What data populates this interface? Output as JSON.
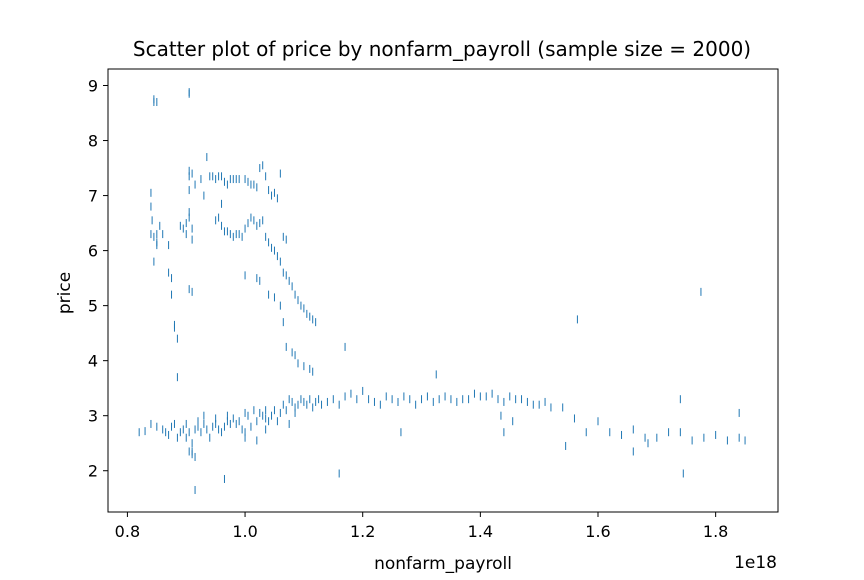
{
  "chart_data": {
    "type": "scatter",
    "title": "Scatter plot of price by nonfarm_payroll (sample size = 2000)",
    "xlabel": "nonfarm_payroll",
    "ylabel": "price",
    "x_offset_label": "1e18",
    "x_ticks": [
      0.8,
      1.0,
      1.2,
      1.4,
      1.6,
      1.8
    ],
    "x_tick_labels": [
      "0.8",
      "1.0",
      "1.2",
      "1.4",
      "1.6",
      "1.8"
    ],
    "y_ticks": [
      2,
      3,
      4,
      5,
      6,
      7,
      8,
      9
    ],
    "y_tick_labels": [
      "2",
      "3",
      "4",
      "5",
      "6",
      "7",
      "8",
      "9"
    ],
    "xlim": [
      0.767,
      1.906
    ],
    "ylim": [
      1.25,
      9.3
    ],
    "grid": false,
    "legend": false,
    "marker": "|",
    "color": "#1f77b4",
    "series": [
      {
        "x": [
          0.845,
          0.845,
          0.85,
          0.905,
          0.905,
          0.84,
          0.84,
          0.845,
          0.85,
          0.85,
          0.845,
          0.84,
          0.842,
          0.85,
          0.855,
          0.86,
          0.87,
          0.87,
          0.875,
          0.875,
          0.88,
          0.88,
          0.885,
          0.885,
          0.89,
          0.895,
          0.9,
          0.9,
          0.905,
          0.905,
          0.91,
          0.91,
          0.905,
          0.91,
          0.905,
          0.91,
          0.905,
          0.905,
          0.915,
          0.925,
          0.93,
          0.935,
          0.94,
          0.945,
          0.95,
          0.955,
          0.96,
          0.96,
          0.965,
          0.97,
          0.975,
          0.98,
          0.985,
          0.99,
          1.0,
          1.005,
          1.01,
          1.015,
          1.02,
          1.025,
          1.03,
          1.035,
          1.04,
          1.045,
          1.05,
          1.055,
          1.06,
          1.065,
          1.07,
          0.95,
          0.955,
          0.96,
          0.965,
          0.97,
          0.975,
          0.98,
          0.985,
          0.99,
          0.995,
          1.0,
          1.005,
          1.01,
          1.015,
          1.02,
          1.025,
          1.03,
          1.035,
          1.04,
          1.045,
          1.05,
          1.055,
          1.06,
          1.065,
          1.07,
          1.075,
          1.08,
          1.085,
          1.09,
          1.095,
          1.1,
          1.105,
          1.11,
          1.115,
          1.12,
          1.0,
          1.02,
          1.025,
          1.04,
          1.05,
          1.06,
          1.065,
          1.07,
          1.08,
          1.085,
          1.09,
          1.1,
          1.11,
          1.115,
          0.82,
          0.83,
          0.84,
          0.85,
          0.86,
          0.865,
          0.87,
          0.875,
          0.88,
          0.885,
          0.89,
          0.895,
          0.9,
          0.9,
          0.905,
          0.91,
          0.91,
          0.915,
          0.92,
          0.925,
          0.93,
          0.935,
          0.94,
          0.945,
          0.95,
          0.955,
          0.96,
          0.965,
          0.97,
          0.975,
          0.98,
          0.985,
          0.99,
          0.995,
          1.0,
          1.005,
          1.01,
          1.015,
          1.02,
          1.025,
          1.03,
          1.035,
          1.04,
          1.045,
          1.05,
          1.055,
          1.06,
          1.065,
          1.07,
          1.075,
          1.08,
          1.085,
          1.09,
          1.095,
          1.1,
          1.105,
          1.11,
          1.115,
          1.12,
          1.125,
          1.13,
          1.14,
          1.15,
          1.16,
          1.17,
          1.18,
          1.19,
          1.2,
          1.21,
          1.22,
          1.23,
          1.24,
          1.25,
          1.26,
          1.27,
          1.28,
          1.29,
          1.3,
          1.31,
          1.32,
          1.33,
          1.34,
          1.35,
          1.36,
          1.37,
          1.38,
          1.39,
          1.4,
          1.41,
          1.42,
          1.43,
          1.44,
          1.45,
          1.46,
          1.47,
          1.48,
          1.49,
          1.5,
          1.51,
          1.52,
          1.54,
          1.56,
          1.58,
          1.6,
          1.62,
          1.64,
          1.66,
          1.68,
          1.7,
          1.72,
          1.74,
          1.76,
          1.78,
          1.8,
          1.82,
          1.84,
          1.85,
          0.905,
          0.91,
          0.915,
          0.92,
          0.93,
          0.95,
          0.97,
          1.0,
          1.02,
          0.915,
          0.965,
          1.0,
          1.16,
          1.265,
          1.435,
          1.44,
          1.455,
          1.545,
          1.66,
          1.685,
          1.745,
          1.17,
          1.325,
          1.565,
          1.74,
          1.775,
          1.84,
          1.075,
          1.085,
          1.035,
          1.035
        ],
        "y": [
          8.75,
          8.7,
          8.7,
          8.88,
          8.85,
          7.05,
          6.3,
          6.25,
          6.3,
          6.1,
          5.8,
          6.8,
          6.55,
          6.15,
          6.45,
          6.3,
          6.1,
          5.6,
          5.5,
          5.2,
          4.65,
          4.6,
          4.4,
          3.7,
          6.45,
          6.4,
          6.5,
          6.3,
          6.7,
          6.6,
          6.4,
          6.2,
          7.45,
          7.4,
          5.3,
          5.25,
          7.35,
          7.1,
          7.2,
          7.3,
          7.0,
          7.7,
          7.35,
          7.35,
          7.3,
          7.35,
          6.85,
          7.35,
          7.25,
          7.2,
          7.3,
          7.3,
          7.3,
          7.3,
          7.3,
          7.25,
          7.2,
          7.2,
          7.15,
          7.5,
          7.55,
          7.35,
          7.1,
          7.0,
          7.05,
          6.95,
          7.4,
          6.25,
          6.2,
          6.55,
          6.6,
          6.45,
          6.35,
          6.35,
          6.3,
          6.25,
          6.3,
          6.3,
          6.25,
          6.4,
          6.5,
          6.6,
          6.55,
          6.45,
          6.5,
          6.55,
          6.25,
          6.15,
          6.05,
          6.0,
          5.9,
          5.8,
          5.6,
          5.55,
          5.45,
          5.35,
          5.2,
          5.1,
          5.0,
          4.95,
          4.85,
          4.8,
          4.75,
          4.7,
          5.55,
          5.5,
          5.45,
          5.2,
          5.15,
          5.0,
          4.7,
          4.25,
          4.15,
          4.1,
          3.95,
          3.9,
          3.85,
          3.8,
          2.7,
          2.72,
          2.85,
          2.8,
          2.75,
          2.7,
          2.65,
          2.8,
          2.85,
          2.6,
          2.7,
          2.75,
          2.85,
          2.6,
          2.7,
          2.5,
          2.35,
          2.75,
          2.8,
          2.7,
          2.85,
          2.75,
          2.6,
          2.8,
          2.85,
          2.75,
          2.7,
          2.8,
          2.9,
          2.85,
          2.95,
          2.85,
          2.9,
          2.75,
          2.7,
          3.0,
          2.8,
          3.1,
          2.9,
          3.05,
          3.0,
          3.1,
          2.9,
          3.0,
          3.1,
          2.9,
          3.05,
          3.2,
          3.1,
          3.3,
          3.25,
          3.15,
          3.2,
          3.3,
          3.25,
          3.2,
          3.3,
          3.15,
          3.25,
          3.3,
          3.2,
          3.25,
          3.3,
          3.2,
          3.35,
          3.4,
          3.3,
          3.45,
          3.3,
          3.25,
          3.2,
          3.35,
          3.3,
          3.25,
          3.35,
          3.3,
          3.2,
          3.3,
          3.35,
          3.25,
          3.3,
          3.35,
          3.3,
          3.25,
          3.3,
          3.3,
          3.4,
          3.35,
          3.35,
          3.4,
          3.3,
          3.25,
          3.35,
          3.3,
          3.3,
          3.25,
          3.2,
          3.2,
          3.25,
          3.15,
          3.15,
          2.95,
          2.7,
          2.9,
          2.7,
          2.65,
          2.75,
          2.6,
          2.6,
          2.7,
          2.7,
          2.55,
          2.6,
          2.65,
          2.55,
          2.6,
          2.55,
          2.35,
          2.3,
          2.25,
          2.9,
          3.0,
          2.95,
          3.0,
          2.6,
          2.55,
          1.65,
          1.85,
          3.05,
          1.95,
          2.7,
          3.0,
          2.7,
          2.9,
          2.45,
          2.35,
          2.5,
          1.95,
          4.25,
          3.75,
          4.75,
          3.3,
          5.25,
          3.05,
          2.85,
          3.05,
          2.95,
          2.75
        ]
      }
    ]
  }
}
